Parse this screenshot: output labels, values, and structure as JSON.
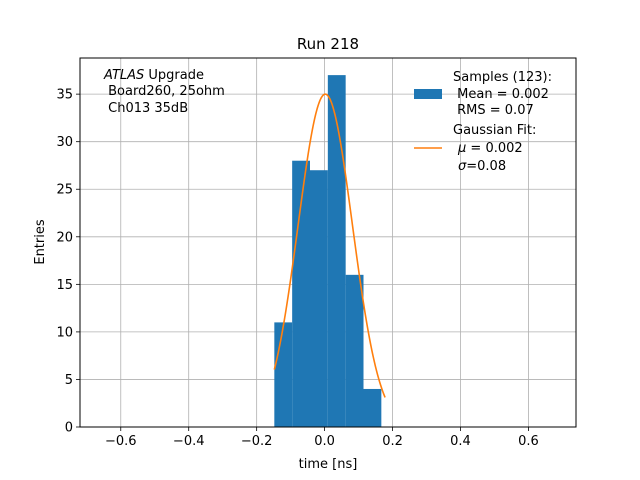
{
  "chart_data": {
    "type": "bar",
    "title": "Run 218",
    "xlabel": "time [ns]",
    "ylabel": "Entries",
    "xlim": [
      -0.72,
      0.74
    ],
    "ylim": [
      0,
      38.8
    ],
    "grid": true,
    "legend_position": "top-right",
    "annotation": {
      "line1_italic": "ATLAS",
      "line1_rest": " Upgrade",
      "line2": " Board260, 25ohm",
      "line3": " Ch013 35dB"
    },
    "x_ticks": [
      {
        "value": -0.6,
        "label": "−0.6"
      },
      {
        "value": -0.4,
        "label": "−0.4"
      },
      {
        "value": -0.2,
        "label": "−0.2"
      },
      {
        "value": 0.0,
        "label": "0.0"
      },
      {
        "value": 0.2,
        "label": "0.2"
      },
      {
        "value": 0.4,
        "label": "0.4"
      },
      {
        "value": 0.6,
        "label": "0.6"
      }
    ],
    "y_ticks": [
      {
        "value": 0,
        "label": "0"
      },
      {
        "value": 5,
        "label": "5"
      },
      {
        "value": 10,
        "label": "10"
      },
      {
        "value": 15,
        "label": "15"
      },
      {
        "value": 20,
        "label": "20"
      },
      {
        "value": 25,
        "label": "25"
      },
      {
        "value": 30,
        "label": "30"
      },
      {
        "value": 35,
        "label": "35"
      }
    ],
    "histogram": {
      "color": "#1f77b4",
      "bin_edges": [
        -0.148,
        -0.0955,
        -0.043,
        0.0095,
        0.062,
        0.1145,
        0.167
      ],
      "bin_width": 0.0525,
      "bins": [
        {
          "x_left": -0.148,
          "count": 11
        },
        {
          "x_left": -0.0955,
          "count": 28
        },
        {
          "x_left": -0.043,
          "count": 27
        },
        {
          "x_left": 0.0095,
          "count": 37
        },
        {
          "x_left": 0.062,
          "count": 16
        },
        {
          "x_left": 0.1145,
          "count": 4
        }
      ]
    },
    "gaussian_fit": {
      "color": "#ff7f0e",
      "amplitude": 35.0,
      "mu": 0.002,
      "sigma": 0.08,
      "x_range": [
        -0.148,
        0.178
      ]
    },
    "legend": {
      "samples_line1": "Samples (123):",
      "samples_line2": " Mean = 0.002",
      "samples_line3": " RMS = 0.07",
      "fit_line1": "Gaussian Fit:",
      "fit_mu_symbol": "μ",
      "fit_mu_rest": " = 0.002",
      "fit_sigma_symbol": "σ",
      "fit_sigma_rest": "=0.08"
    }
  }
}
